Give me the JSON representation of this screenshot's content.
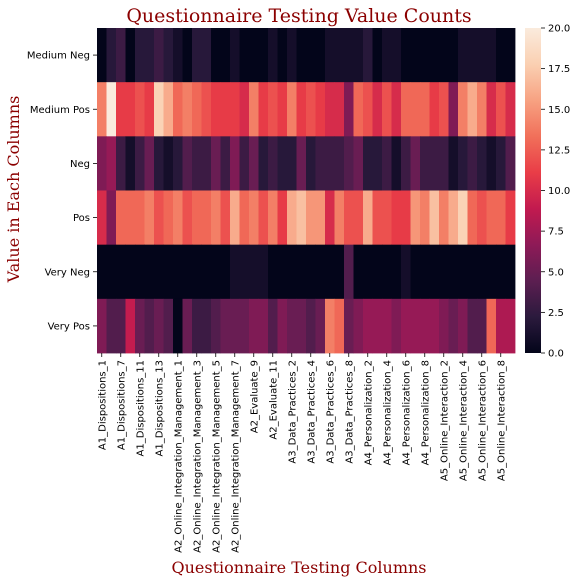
{
  "chart_data": {
    "type": "heatmap",
    "title": "Questionnaire Testing Value Counts",
    "xlabel": "Questionnaire Testing Columns",
    "ylabel": "Value in Each Columns",
    "rows": [
      "Medium Neg",
      "Medium Pos",
      "Neg",
      "Pos",
      "Very Neg",
      "Very Pos"
    ],
    "x_tick_labels": [
      "A1_Dispositions_1",
      "A1_Dispositions_7",
      "A1_Dispositions_11",
      "A1_Dispositions_13",
      "A2_Online_Integration_Management_1",
      "A2_Online_Integration_Management_3",
      "A2_Online_Integration_Management_5",
      "A2_Online_Integration_Management_7",
      "A2_Evaluate_9",
      "A2_Evaluate_11",
      "A3_Data_Practices_2",
      "A3_Data_Practices_4",
      "A3_Data_Practices_6",
      "A3_Data_Practices_8",
      "A4_Personalization_2",
      "A4_Personalization_4",
      "A4_Personalization_6",
      "A4_Personalization_8",
      "A5_Online_Interaction_2",
      "A5_Online_Interaction_4",
      "A5_Online_Interaction_6",
      "A5_Online_Interaction_8"
    ],
    "n_columns": 44,
    "values": [
      [
        0,
        2,
        3,
        0,
        2,
        2,
        3,
        2,
        1,
        0,
        2,
        2,
        0,
        0,
        1,
        0,
        0,
        0,
        1,
        0,
        1,
        0,
        0,
        0,
        1,
        1,
        1,
        1,
        2,
        0,
        1,
        1,
        0,
        0,
        0,
        0,
        0,
        0,
        1,
        1,
        1,
        1,
        0,
        0
      ],
      [
        14,
        20,
        11,
        11,
        12,
        11,
        18,
        16,
        13,
        14,
        13,
        12,
        11,
        11,
        11,
        10,
        14,
        11,
        12,
        11,
        14,
        11,
        12,
        11,
        10,
        10,
        6,
        13,
        12,
        10,
        12,
        10,
        13,
        13,
        13,
        11,
        12,
        6,
        14,
        16,
        14,
        10,
        12,
        10
      ],
      [
        6,
        7,
        3,
        1,
        3,
        5,
        2,
        1,
        2,
        4,
        3,
        3,
        5,
        3,
        6,
        3,
        5,
        2,
        3,
        2,
        2,
        5,
        2,
        3,
        3,
        3,
        4,
        5,
        2,
        2,
        3,
        1,
        3,
        5,
        3,
        3,
        3,
        1,
        2,
        3,
        2,
        1,
        2,
        4
      ],
      [
        10,
        6,
        13,
        13,
        13,
        14,
        12,
        13,
        14,
        12,
        13,
        13,
        14,
        12,
        16,
        13,
        14,
        12,
        14,
        11,
        16,
        17,
        15,
        15,
        10,
        14,
        12,
        12,
        16,
        12,
        12,
        11,
        11,
        15,
        14,
        17,
        14,
        16,
        18,
        13,
        12,
        13,
        13,
        11
      ],
      [
        0,
        0,
        0,
        0,
        0,
        0,
        0,
        0,
        0,
        0,
        0,
        0,
        0,
        0,
        1,
        1,
        1,
        1,
        0,
        0,
        0,
        0,
        0,
        0,
        0,
        0,
        4,
        0,
        0,
        0,
        0,
        0,
        1,
        0,
        0,
        0,
        0,
        0,
        0,
        0,
        0,
        0,
        0,
        0
      ],
      [
        6,
        4,
        4,
        9,
        5,
        4,
        5,
        4,
        0,
        5,
        3,
        3,
        4,
        5,
        5,
        5,
        6,
        6,
        4,
        6,
        5,
        5,
        4,
        5,
        14,
        13,
        5,
        6,
        7,
        7,
        7,
        6,
        7,
        7,
        7,
        7,
        6,
        5,
        6,
        4,
        4,
        13,
        8,
        8
      ]
    ],
    "colorbar": {
      "min": 0,
      "max": 20,
      "ticks": [
        "0.0",
        "2.5",
        "5.0",
        "7.5",
        "10.0",
        "12.5",
        "15.0",
        "17.5",
        "20.0"
      ]
    },
    "colormap": [
      "#03051a",
      "#2b1a3d",
      "#5c1e51",
      "#8e1a57",
      "#c21a4f",
      "#e93d47",
      "#f1705a",
      "#f7a282",
      "#fad0b2",
      "#faebdd"
    ],
    "title_color": "#8b0000"
  }
}
